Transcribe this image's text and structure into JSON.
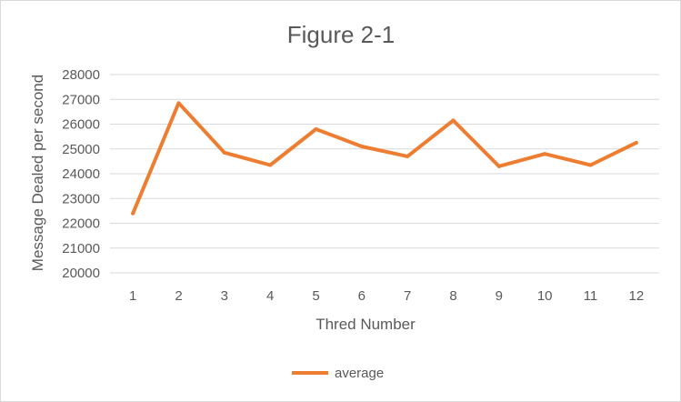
{
  "chart_data": {
    "type": "line",
    "title": "Figure 2-1",
    "xlabel": "Thred Number",
    "ylabel": "Message Dealed per second",
    "x": [
      "1",
      "2",
      "3",
      "4",
      "5",
      "6",
      "7",
      "8",
      "9",
      "10",
      "11",
      "12"
    ],
    "series": [
      {
        "name": "average",
        "color": "#ed7d31",
        "values": [
          22400,
          26850,
          24850,
          24350,
          25800,
          25100,
          24700,
          26150,
          24300,
          24800,
          24350,
          25250
        ]
      }
    ],
    "ylim": [
      20000,
      28000
    ],
    "yticks": [
      "20000",
      "21000",
      "22000",
      "23000",
      "24000",
      "25000",
      "26000",
      "27000",
      "28000"
    ],
    "grid": true,
    "legend": "bottom"
  }
}
